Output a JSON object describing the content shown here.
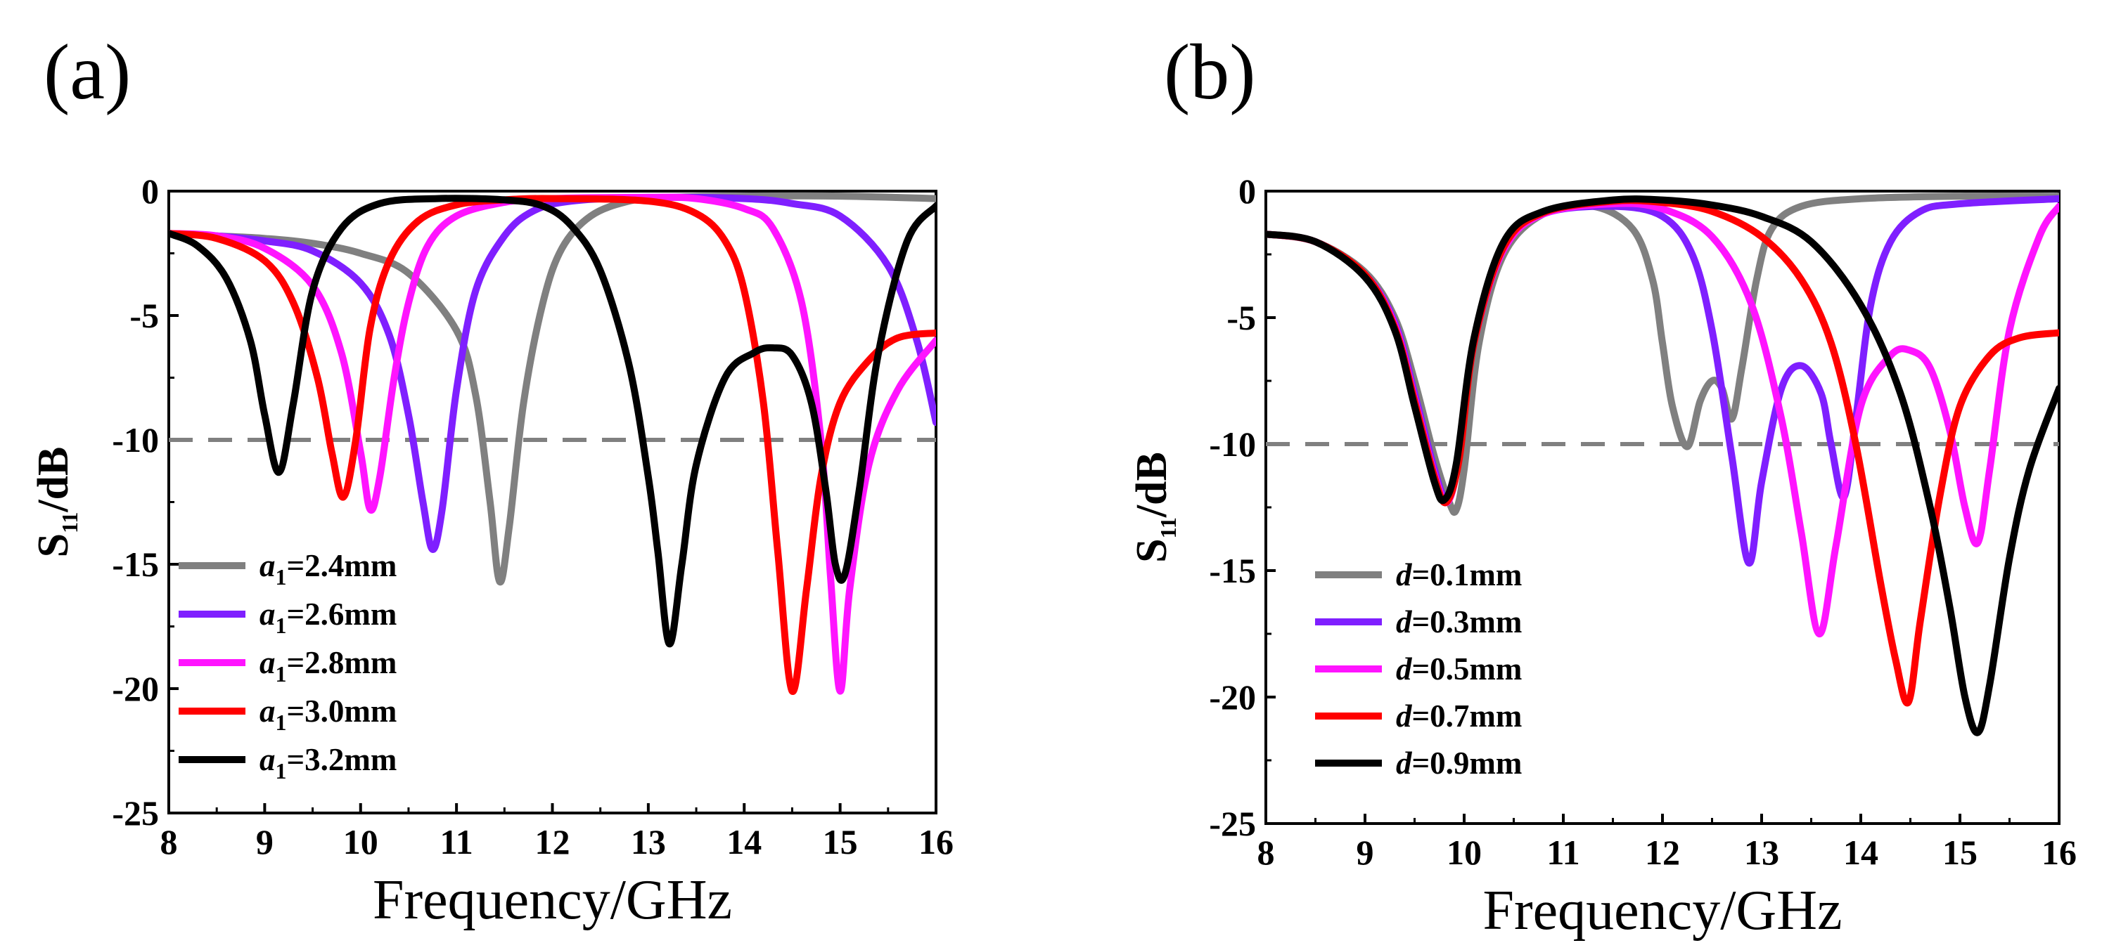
{
  "chart_data": [
    {
      "panel_label": "(a)",
      "type": "line",
      "xlabel": "Frequency/GHz",
      "ylabel": {
        "main": "S",
        "sub": "11",
        "rest": "/dB"
      },
      "xlim": [
        8,
        16
      ],
      "ylim": [
        -25,
        0
      ],
      "xticks": [
        8,
        9,
        10,
        11,
        12,
        13,
        14,
        15,
        16
      ],
      "yticks": [
        0,
        -5,
        -10,
        -15,
        -20,
        -25
      ],
      "xtick_labels": [
        "8",
        "9",
        "10",
        "11",
        "12",
        "13",
        "14",
        "15",
        "16"
      ],
      "ytick_labels": [
        "0",
        "-5",
        "-10",
        "-15",
        "-20",
        "-25"
      ],
      "reference_line": {
        "y": -10,
        "style": "dashed",
        "color": "#808080"
      },
      "legend_position": "bottom-left",
      "series": [
        {
          "name": "a1=2.4mm",
          "label_var": "a",
          "label_sub": "1",
          "label_val": "=2.4mm",
          "color": "#808080",
          "x": [
            8,
            8.5,
            9,
            9.5,
            10,
            10.5,
            11,
            11.2,
            11.35,
            11.45,
            11.55,
            11.7,
            11.9,
            12.1,
            12.4,
            12.8,
            13.2,
            14,
            15,
            16
          ],
          "y": [
            -1.7,
            -1.8,
            -1.9,
            -2.1,
            -2.5,
            -3.3,
            -5.6,
            -8.2,
            -12.5,
            -15.7,
            -13.5,
            -8.5,
            -4.5,
            -2.3,
            -1.0,
            -0.4,
            -0.25,
            -0.2,
            -0.2,
            -0.3
          ]
        },
        {
          "name": "a1=2.6mm",
          "label_var": "a",
          "label_sub": "1",
          "label_val": "=2.6mm",
          "color": "#7f1fff",
          "x": [
            8,
            8.5,
            9,
            9.5,
            10,
            10.3,
            10.5,
            10.65,
            10.75,
            10.85,
            11,
            11.2,
            11.5,
            11.8,
            12.2,
            13,
            14,
            14.5,
            15,
            15.5,
            15.8,
            16
          ],
          "y": [
            -1.7,
            -1.8,
            -2.0,
            -2.4,
            -3.7,
            -5.8,
            -9.0,
            -12.5,
            -14.4,
            -12.8,
            -8.0,
            -4.0,
            -1.8,
            -0.8,
            -0.4,
            -0.25,
            -0.3,
            -0.5,
            -1.0,
            -3.0,
            -6.0,
            -9.3
          ]
        },
        {
          "name": "a1=2.8mm",
          "label_var": "a",
          "label_sub": "1",
          "label_val": "=2.8mm",
          "color": "#ff14ff",
          "x": [
            8,
            8.5,
            9,
            9.5,
            9.8,
            10.0,
            10.1,
            10.2,
            10.35,
            10.5,
            10.7,
            11,
            11.5,
            12,
            13,
            13.5,
            14,
            14.3,
            14.6,
            14.8,
            14.9,
            15.0,
            15.1,
            15.3,
            15.6,
            16
          ],
          "y": [
            -1.7,
            -1.8,
            -2.3,
            -3.8,
            -6.5,
            -10.5,
            -12.8,
            -11.5,
            -7.5,
            -4.5,
            -2.2,
            -1.0,
            -0.45,
            -0.3,
            -0.25,
            -0.3,
            -0.7,
            -1.5,
            -4.5,
            -10.0,
            -15.5,
            -20.1,
            -16.0,
            -11.0,
            -8.0,
            -6.0
          ]
        },
        {
          "name": "a1=3.0mm",
          "label_var": "a",
          "label_sub": "1",
          "label_val": "=3.0mm",
          "color": "#ff0000",
          "x": [
            8,
            8.5,
            9,
            9.3,
            9.55,
            9.7,
            9.82,
            9.95,
            10.1,
            10.3,
            10.6,
            11,
            11.5,
            12,
            13,
            13.5,
            13.8,
            14.0,
            14.2,
            14.35,
            14.5,
            14.65,
            14.8,
            15,
            15.3,
            15.6,
            16
          ],
          "y": [
            -1.7,
            -1.9,
            -2.8,
            -4.5,
            -7.5,
            -10.5,
            -12.3,
            -10.0,
            -5.5,
            -2.8,
            -1.2,
            -0.55,
            -0.35,
            -0.3,
            -0.4,
            -0.9,
            -2.0,
            -4.0,
            -8.5,
            -14.5,
            -20.1,
            -16.0,
            -11.5,
            -8.5,
            -6.8,
            -5.9,
            -5.7
          ]
        },
        {
          "name": "a1=3.2mm",
          "label_var": "a",
          "label_sub": "1",
          "label_val": "=3.2mm",
          "color": "#000000",
          "x": [
            8,
            8.3,
            8.6,
            8.85,
            9.0,
            9.15,
            9.3,
            9.5,
            9.8,
            10.2,
            10.8,
            11.5,
            11.9,
            12.2,
            12.5,
            12.8,
            13.0,
            13.1,
            13.22,
            13.35,
            13.5,
            13.8,
            14.1,
            14.3,
            14.5,
            14.7,
            14.85,
            14.95,
            15.05,
            15.2,
            15.4,
            15.7,
            16
          ],
          "y": [
            -1.7,
            -2.2,
            -3.5,
            -6.0,
            -9.0,
            -11.3,
            -8.5,
            -4.0,
            -1.5,
            -0.5,
            -0.3,
            -0.35,
            -0.6,
            -1.4,
            -3.2,
            -7.0,
            -11.5,
            -14.5,
            -18.2,
            -15.0,
            -11.0,
            -7.5,
            -6.5,
            -6.3,
            -6.6,
            -8.5,
            -12.0,
            -15.0,
            -15.4,
            -12.0,
            -6.5,
            -2.0,
            -0.6
          ]
        }
      ]
    },
    {
      "panel_label": "(b)",
      "type": "line",
      "xlabel": "Frequency/GHz",
      "ylabel": {
        "main": "S",
        "sub": "11",
        "rest": "/dB"
      },
      "xlim": [
        8,
        16
      ],
      "ylim": [
        -25,
        0
      ],
      "xticks": [
        8,
        9,
        10,
        11,
        12,
        13,
        14,
        15,
        16
      ],
      "yticks": [
        0,
        -5,
        -10,
        -15,
        -20,
        -25
      ],
      "xtick_labels": [
        "8",
        "9",
        "10",
        "11",
        "12",
        "13",
        "14",
        "15",
        "16"
      ],
      "ytick_labels": [
        "0",
        "-5",
        "-10",
        "-15",
        "-20",
        "-25"
      ],
      "reference_line": {
        "y": -10,
        "style": "dashed",
        "color": "#808080"
      },
      "legend_position": "bottom-left",
      "series": [
        {
          "name": "d=0.1mm",
          "label_var": "d",
          "label_sub": "",
          "label_val": "=0.1mm",
          "color": "#808080",
          "x": [
            8,
            8.5,
            9,
            9.3,
            9.5,
            9.7,
            9.85,
            9.92,
            10.0,
            10.15,
            10.4,
            10.8,
            11.3,
            11.7,
            11.9,
            12.0,
            12.1,
            12.25,
            12.38,
            12.5,
            12.6,
            12.7,
            12.8,
            12.95,
            13.1,
            13.4,
            14,
            15,
            16
          ],
          "y": [
            -1.7,
            -2.0,
            -3.2,
            -5.0,
            -7.5,
            -10.5,
            -12.3,
            -12.6,
            -11.0,
            -6.0,
            -2.5,
            -0.9,
            -0.6,
            -1.5,
            -3.5,
            -6.0,
            -8.5,
            -10.1,
            -8.3,
            -7.5,
            -7.8,
            -9.0,
            -7.0,
            -3.5,
            -1.5,
            -0.6,
            -0.3,
            -0.2,
            -0.2
          ]
        },
        {
          "name": "d=0.3mm",
          "label_var": "d",
          "label_sub": "",
          "label_val": "=0.3mm",
          "color": "#7f1fff",
          "x": [
            8,
            8.5,
            9,
            9.3,
            9.5,
            9.7,
            9.82,
            9.95,
            10.1,
            10.4,
            10.8,
            11.5,
            12.0,
            12.3,
            12.5,
            12.7,
            12.87,
            13.0,
            13.2,
            13.4,
            13.6,
            13.7,
            13.83,
            13.95,
            14.1,
            14.3,
            14.6,
            15,
            16
          ],
          "y": [
            -1.7,
            -2.0,
            -3.3,
            -5.2,
            -8.0,
            -11.0,
            -12.1,
            -10.5,
            -6.0,
            -2.3,
            -0.9,
            -0.6,
            -1.0,
            -2.5,
            -5.5,
            -10.5,
            -14.7,
            -11.5,
            -7.8,
            -6.9,
            -8.0,
            -10.0,
            -12.1,
            -9.0,
            -4.5,
            -2.0,
            -0.8,
            -0.5,
            -0.3
          ]
        },
        {
          "name": "d=0.5mm",
          "label_var": "d",
          "label_sub": "",
          "label_val": "=0.5mm",
          "color": "#ff14ff",
          "x": [
            8,
            8.5,
            9,
            9.3,
            9.5,
            9.7,
            9.83,
            9.95,
            10.1,
            10.4,
            10.8,
            11.5,
            12.0,
            12.5,
            12.9,
            13.2,
            13.4,
            13.58,
            13.75,
            14.0,
            14.3,
            14.5,
            14.7,
            14.9,
            15.05,
            15.18,
            15.3,
            15.5,
            15.8,
            16
          ],
          "y": [
            -1.7,
            -2.0,
            -3.3,
            -5.3,
            -8.2,
            -11.2,
            -12.3,
            -10.5,
            -6.0,
            -2.3,
            -0.9,
            -0.5,
            -0.7,
            -1.8,
            -4.5,
            -9.0,
            -13.5,
            -17.5,
            -14.0,
            -8.5,
            -6.5,
            -6.3,
            -7.0,
            -9.5,
            -12.5,
            -13.9,
            -11.0,
            -5.5,
            -1.8,
            -0.6
          ]
        },
        {
          "name": "d=0.7mm",
          "label_var": "d",
          "label_sub": "",
          "label_val": "=0.7mm",
          "color": "#ff0000",
          "x": [
            8,
            8.5,
            9,
            9.3,
            9.5,
            9.7,
            9.82,
            9.95,
            10.1,
            10.4,
            10.8,
            11.5,
            12.0,
            12.5,
            13.0,
            13.4,
            13.7,
            13.95,
            14.2,
            14.35,
            14.48,
            14.6,
            14.8,
            15.0,
            15.3,
            15.6,
            16
          ],
          "y": [
            -1.7,
            -2.0,
            -3.3,
            -5.4,
            -8.3,
            -11.3,
            -12.3,
            -10.6,
            -6.0,
            -2.2,
            -0.85,
            -0.4,
            -0.45,
            -0.8,
            -1.8,
            -3.5,
            -6.0,
            -10.0,
            -15.5,
            -18.5,
            -20.2,
            -17.0,
            -12.0,
            -8.5,
            -6.5,
            -5.8,
            -5.6
          ]
        },
        {
          "name": "d=0.9mm",
          "label_var": "d",
          "label_sub": "",
          "label_val": "=0.9mm",
          "color": "#000000",
          "x": [
            8,
            8.5,
            9,
            9.3,
            9.5,
            9.7,
            9.8,
            9.92,
            10.1,
            10.4,
            10.8,
            11.5,
            12.0,
            12.5,
            13.0,
            13.5,
            14.0,
            14.4,
            14.7,
            14.9,
            15.05,
            15.18,
            15.3,
            15.5,
            15.7,
            16
          ],
          "y": [
            -1.7,
            -2.0,
            -3.4,
            -5.5,
            -8.5,
            -11.5,
            -12.2,
            -10.8,
            -5.8,
            -2.0,
            -0.8,
            -0.35,
            -0.35,
            -0.55,
            -1.0,
            -2.0,
            -4.5,
            -8.0,
            -12.5,
            -16.5,
            -20.0,
            -21.4,
            -19.5,
            -14.5,
            -11.0,
            -7.8
          ]
        }
      ]
    }
  ]
}
